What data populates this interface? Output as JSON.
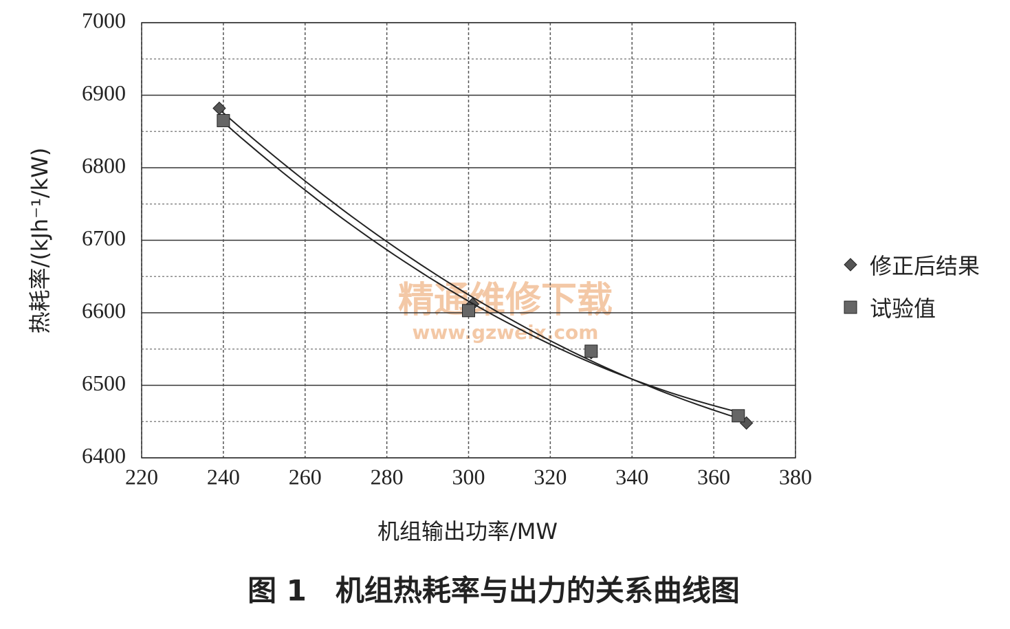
{
  "chart_data": {
    "type": "scatter",
    "title": "图 1　机组热耗率与出力的关系曲线图",
    "x_label": "机组输出功率/MW",
    "y_label": "热耗率/(kJh⁻¹/kW)",
    "watermark": [
      "精通维修下载",
      "www.gzweix.com"
    ],
    "series": [
      {
        "name": "修正后结果",
        "marker": "diamond",
        "color": "#555555",
        "x": [
          239,
          301,
          330,
          368
        ],
        "values": [
          6882,
          6612,
          6545,
          6448
        ]
      },
      {
        "name": "试验值",
        "marker": "square",
        "color": "#666666",
        "x": [
          240,
          300,
          330,
          366
        ],
        "values": [
          6865,
          6603,
          6547,
          6458
        ]
      }
    ],
    "trendline": "quadratic",
    "xlim": [
      220,
      380
    ],
    "xticks": [
      220,
      240,
      260,
      280,
      300,
      320,
      340,
      360,
      380
    ],
    "ylim": [
      6400,
      7000
    ],
    "yticks": [
      6400,
      6500,
      6600,
      6700,
      6800,
      6900,
      7000
    ],
    "grid": true,
    "legend": "right"
  }
}
